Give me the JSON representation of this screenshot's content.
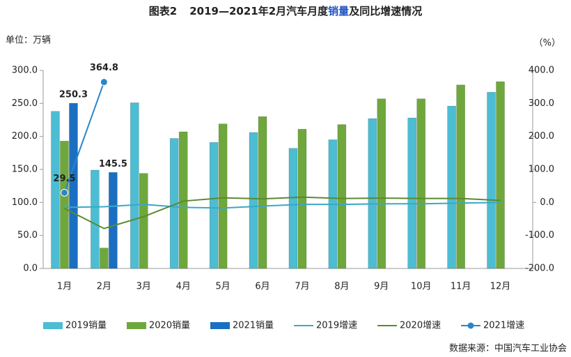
{
  "chart_data": {
    "type": "bar",
    "title_parts": [
      "图表2",
      "2019—2021年2月汽车月度",
      "销量",
      "及同比增速情况"
    ],
    "y_label": "单位：万辆",
    "y2_label": "（%）",
    "source": "数据来源：中国汽车工业协会",
    "categories": [
      "1月",
      "2月",
      "3月",
      "4月",
      "5月",
      "6月",
      "7月",
      "8月",
      "9月",
      "10月",
      "11月",
      "12月"
    ],
    "ylim": [
      0,
      300
    ],
    "yticks": [
      {
        "value": 0,
        "label": "0.0"
      },
      {
        "value": 50,
        "label": "50.0"
      },
      {
        "value": 100,
        "label": "100.0"
      },
      {
        "value": 150,
        "label": "150.0"
      },
      {
        "value": 200,
        "label": "200.0"
      },
      {
        "value": 250,
        "label": "250.0"
      },
      {
        "value": 300,
        "label": "300.0"
      }
    ],
    "y2lim": [
      -200,
      400
    ],
    "y2ticks": [
      {
        "value": -200,
        "label": "-200.0"
      },
      {
        "value": -100,
        "label": "-100.0"
      },
      {
        "value": 0,
        "label": "0.0"
      },
      {
        "value": 100,
        "label": "100.0"
      },
      {
        "value": 200,
        "label": "200.0"
      },
      {
        "value": 300,
        "label": "300.0"
      },
      {
        "value": 400,
        "label": "400.0"
      }
    ],
    "series": [
      {
        "name": "2019销量",
        "type": "bar",
        "color": "#4cbdd2",
        "values": [
          238,
          149,
          251,
          197,
          191,
          206,
          182,
          195,
          227,
          228,
          246,
          267
        ]
      },
      {
        "name": "2020销量",
        "type": "bar",
        "color": "#6ea83c",
        "values": [
          193,
          31,
          144,
          207,
          219,
          230,
          211,
          218,
          257,
          257,
          278,
          283
        ]
      },
      {
        "name": "2021销量",
        "type": "bar",
        "color": "#1b6fc2",
        "label_color": "#1f2f9a",
        "show_labels": true,
        "values": [
          250.3,
          145.5,
          null,
          null,
          null,
          null,
          null,
          null,
          null,
          null,
          null,
          null
        ]
      },
      {
        "name": "2019增速",
        "type": "line",
        "axis": "y2",
        "color": "#3aa8c8",
        "values": [
          -15,
          -13,
          -6,
          -15,
          -17,
          -11,
          -6,
          -6,
          -4,
          -4,
          -2,
          0
        ]
      },
      {
        "name": "2020增速",
        "type": "line",
        "axis": "y2",
        "color": "#5a8a30",
        "values": [
          -18,
          -79,
          -43,
          4,
          14,
          11,
          16,
          12,
          13,
          12,
          12,
          6
        ]
      },
      {
        "name": "2021增速",
        "type": "line",
        "axis": "y2",
        "color": "#2a86c8",
        "label_color": "#111111",
        "markers": true,
        "show_labels": true,
        "values": [
          29.5,
          364.8,
          null,
          null,
          null,
          null,
          null,
          null,
          null,
          null,
          null,
          null
        ]
      }
    ]
  }
}
